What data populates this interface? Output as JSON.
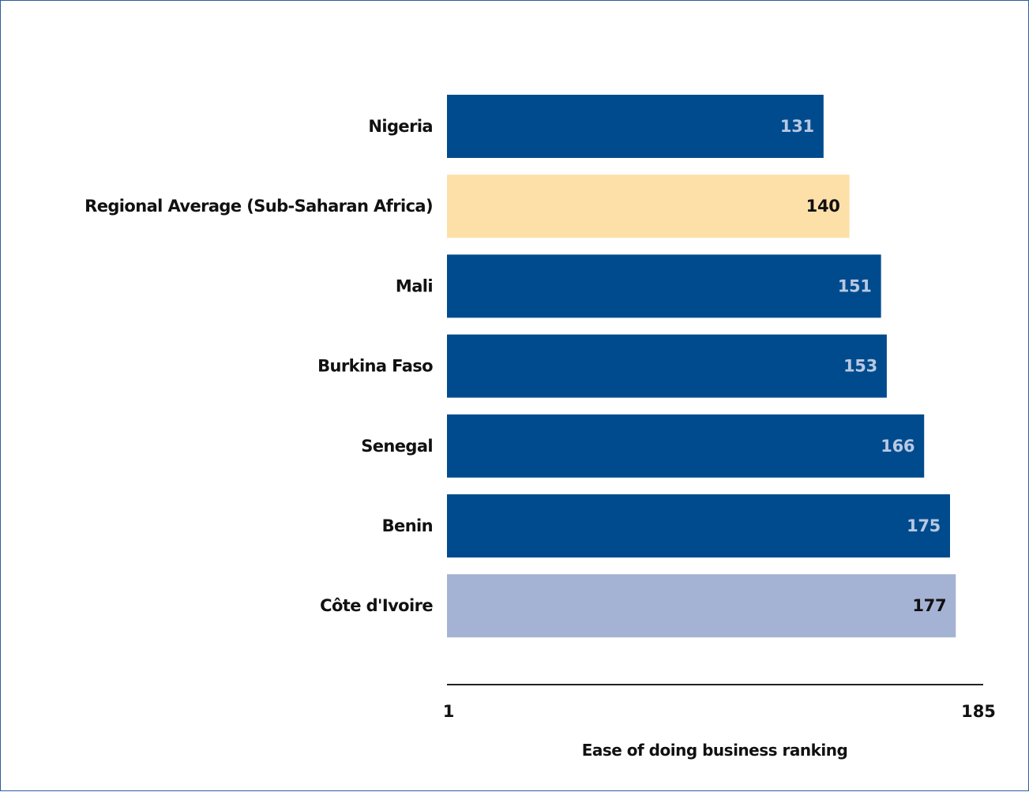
{
  "chart_data": {
    "type": "bar",
    "orientation": "horizontal",
    "categories": [
      "Nigeria",
      "Regional Average (Sub-Saharan Africa)",
      "Mali",
      "Burkina Faso",
      "Senegal",
      "Benin",
      "Côte d'Ivoire"
    ],
    "values": [
      131,
      140,
      151,
      153,
      166,
      175,
      177
    ],
    "value_labels": [
      "131",
      "140",
      "151",
      "153",
      "166",
      "175",
      "177"
    ],
    "bar_colors": [
      "#004b8d",
      "#fde0a8",
      "#004b8d",
      "#004b8d",
      "#004b8d",
      "#004b8d",
      "#a4b2d4"
    ],
    "label_colors": [
      "#b8c8e2",
      "#111111",
      "#b8c8e2",
      "#b8c8e2",
      "#b8c8e2",
      "#b8c8e2",
      "#111111"
    ],
    "xlabel": "Ease of doing business ranking",
    "ylabel": "",
    "xlim": [
      1,
      185
    ],
    "xticks": [
      1,
      185
    ],
    "xtick_labels": [
      "1",
      "185"
    ],
    "grid": false,
    "legend": "none"
  }
}
